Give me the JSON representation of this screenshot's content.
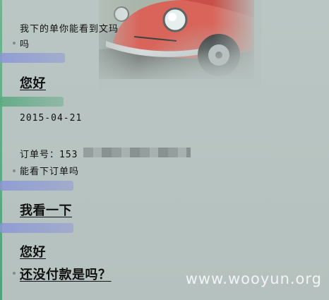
{
  "messages": {
    "line1": "我下的单你能看到文玛",
    "line2": "吗",
    "greeting1": "您好",
    "date": "2015-04-21",
    "order_label": "订单号：153",
    "can_see": "能看下订单吗",
    "check": "我看一下",
    "greeting2": "您好",
    "unpaid": "还没付款是吗？"
  },
  "watermark": "www.wooyun.org",
  "colors": {
    "background": "#b7c3c0",
    "accent_green": "#5caa82",
    "accent_purple": "#8a96d6",
    "text": "#111111",
    "watermark": "#ffffff"
  },
  "decorations": {
    "photo": "red-vintage-car-photo",
    "redaction": "blurred-order-number"
  }
}
